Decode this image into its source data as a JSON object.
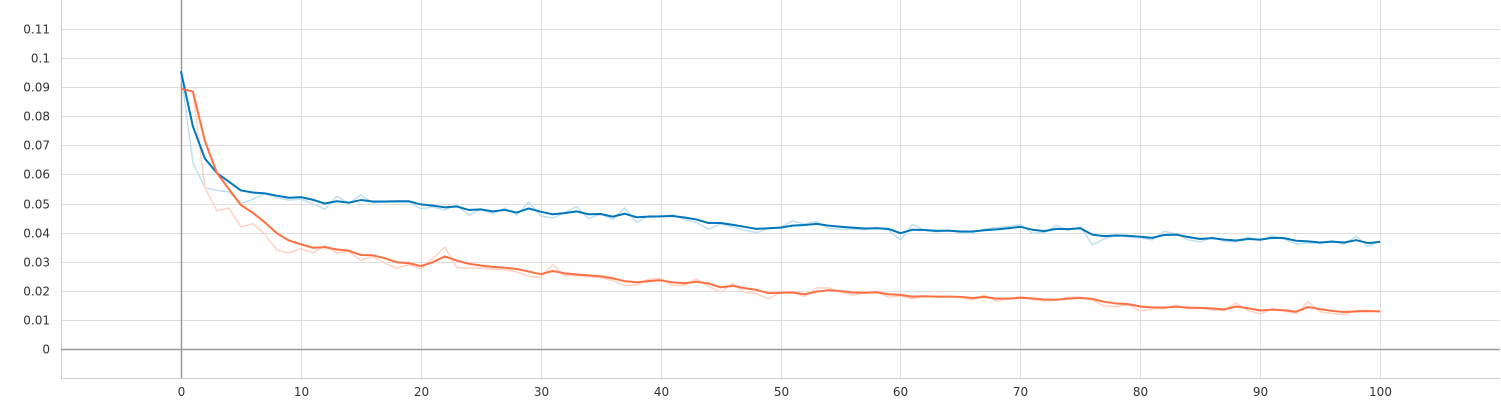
{
  "chart_data": {
    "type": "line",
    "title": "",
    "xlabel": "",
    "ylabel": "",
    "xlim": [
      -10,
      110
    ],
    "ylim": [
      -0.01,
      0.12
    ],
    "x_ticks": [
      0,
      10,
      20,
      30,
      40,
      50,
      60,
      70,
      80,
      90,
      100
    ],
    "x_tick_labels": [
      "0",
      "10",
      "20",
      "30",
      "40",
      "50",
      "60",
      "70",
      "80",
      "90",
      "100"
    ],
    "y_ticks": [
      0,
      0.01,
      0.02,
      0.03,
      0.04,
      0.05,
      0.06,
      0.07,
      0.08,
      0.09,
      0.1,
      0.11
    ],
    "y_tick_labels": [
      "0",
      "0.01",
      "0.02",
      "0.03",
      "0.04",
      "0.05",
      "0.06",
      "0.07",
      "0.08",
      "0.09",
      "0.1",
      "0.11"
    ],
    "grid": true,
    "legend": "none",
    "x": [
      0,
      1,
      2,
      3,
      4,
      5,
      6,
      7,
      8,
      9,
      10,
      11,
      12,
      13,
      14,
      15,
      16,
      17,
      18,
      19,
      20,
      21,
      22,
      23,
      24,
      25,
      26,
      27,
      28,
      29,
      30,
      31,
      32,
      33,
      34,
      35,
      36,
      37,
      38,
      39,
      40,
      41,
      42,
      43,
      44,
      45,
      46,
      47,
      48,
      49,
      50,
      51,
      52,
      53,
      54,
      55,
      56,
      57,
      58,
      59,
      60,
      61,
      62,
      63,
      64,
      65,
      66,
      67,
      68,
      69,
      70,
      71,
      72,
      73,
      74,
      75,
      76,
      77,
      78,
      79,
      80,
      81,
      82,
      83,
      84,
      85,
      86,
      87,
      88,
      89,
      90,
      91,
      92,
      93,
      94,
      95,
      96,
      97,
      98,
      99,
      100
    ],
    "series": [
      {
        "color": "#0077bb",
        "raw_color": "#bfe0ef",
        "smoothed": [
          0.0955,
          0.0765,
          0.0655,
          0.0605,
          0.0575,
          0.0545,
          0.0538,
          0.0535,
          0.0527,
          0.052,
          0.0522,
          0.0513,
          0.05,
          0.0508,
          0.0503,
          0.0512,
          0.0507,
          0.0507,
          0.0508,
          0.0508,
          0.0497,
          0.0493,
          0.0487,
          0.049,
          0.0478,
          0.048,
          0.0473,
          0.0478,
          0.0469,
          0.0483,
          0.0472,
          0.0463,
          0.0467,
          0.0473,
          0.0463,
          0.0464,
          0.0455,
          0.0465,
          0.0453,
          0.0455,
          0.0456,
          0.0457,
          0.0452,
          0.0445,
          0.0433,
          0.0433,
          0.0427,
          0.042,
          0.0413,
          0.0415,
          0.0417,
          0.0424,
          0.0426,
          0.043,
          0.0424,
          0.042,
          0.0417,
          0.0414,
          0.0415,
          0.0413,
          0.0398,
          0.041,
          0.0409,
          0.0406,
          0.0407,
          0.0404,
          0.0404,
          0.0408,
          0.0411,
          0.0415,
          0.042,
          0.041,
          0.0405,
          0.0413,
          0.0412,
          0.0415,
          0.0393,
          0.0388,
          0.039,
          0.0389,
          0.0386,
          0.0382,
          0.0392,
          0.0393,
          0.0385,
          0.0378,
          0.0381,
          0.0376,
          0.0373,
          0.0378,
          0.0376,
          0.0382,
          0.0381,
          0.0372,
          0.037,
          0.0366,
          0.0369,
          0.0366,
          0.0374,
          0.0364,
          0.0368
        ],
        "raw": [
          0.0955,
          0.064,
          0.0555,
          0.0545,
          0.054,
          0.05,
          0.0515,
          0.0535,
          0.052,
          0.0512,
          0.0515,
          0.05,
          0.048,
          0.0525,
          0.05,
          0.053,
          0.0502,
          0.0505,
          0.0505,
          0.0505,
          0.0482,
          0.0488,
          0.0478,
          0.0495,
          0.046,
          0.048,
          0.0465,
          0.0485,
          0.046,
          0.0505,
          0.0458,
          0.045,
          0.0468,
          0.049,
          0.0448,
          0.0465,
          0.0445,
          0.0485,
          0.0435,
          0.0458,
          0.0455,
          0.0462,
          0.0445,
          0.0435,
          0.0412,
          0.043,
          0.042,
          0.0408,
          0.04,
          0.0415,
          0.0418,
          0.044,
          0.043,
          0.0438,
          0.0415,
          0.0412,
          0.0412,
          0.041,
          0.0418,
          0.0408,
          0.0375,
          0.0428,
          0.0408,
          0.0402,
          0.0408,
          0.04,
          0.04,
          0.0412,
          0.0418,
          0.042,
          0.0428,
          0.0398,
          0.04,
          0.0425,
          0.0408,
          0.042,
          0.0358,
          0.0378,
          0.0392,
          0.0385,
          0.0382,
          0.0375,
          0.0405,
          0.0395,
          0.0375,
          0.0368,
          0.0385,
          0.037,
          0.0368,
          0.0385,
          0.0372,
          0.039,
          0.0378,
          0.036,
          0.0365,
          0.0362,
          0.0372,
          0.036,
          0.0388,
          0.0352,
          0.0372
        ]
      },
      {
        "color": "#ff7043",
        "raw_color": "#ffd2c4",
        "smoothed": [
          0.0895,
          0.0885,
          0.0715,
          0.0605,
          0.055,
          0.0495,
          0.0468,
          0.0435,
          0.0398,
          0.0373,
          0.036,
          0.0348,
          0.035,
          0.0342,
          0.0338,
          0.0323,
          0.0322,
          0.0312,
          0.0298,
          0.0295,
          0.0285,
          0.0298,
          0.0318,
          0.0304,
          0.0293,
          0.0287,
          0.0282,
          0.0279,
          0.0275,
          0.0266,
          0.0257,
          0.0268,
          0.026,
          0.0256,
          0.0253,
          0.025,
          0.0243,
          0.0233,
          0.0229,
          0.0233,
          0.0236,
          0.0229,
          0.0226,
          0.0231,
          0.0225,
          0.0212,
          0.0217,
          0.0209,
          0.0203,
          0.0192,
          0.0193,
          0.0194,
          0.0188,
          0.0197,
          0.0202,
          0.0199,
          0.0194,
          0.0193,
          0.0195,
          0.0188,
          0.0186,
          0.018,
          0.0181,
          0.018,
          0.018,
          0.0179,
          0.0175,
          0.0179,
          0.0173,
          0.0173,
          0.0176,
          0.0174,
          0.017,
          0.0169,
          0.0173,
          0.0175,
          0.0172,
          0.0162,
          0.0156,
          0.0154,
          0.0146,
          0.0143,
          0.0142,
          0.0145,
          0.0142,
          0.0141,
          0.0139,
          0.0136,
          0.0146,
          0.014,
          0.0132,
          0.0135,
          0.0133,
          0.0128,
          0.0144,
          0.0137,
          0.0131,
          0.0127,
          0.0129,
          0.013,
          0.0129
        ],
        "raw": [
          0.0895,
          0.0885,
          0.0555,
          0.0475,
          0.0485,
          0.042,
          0.043,
          0.0395,
          0.034,
          0.033,
          0.0345,
          0.033,
          0.0355,
          0.033,
          0.0335,
          0.0305,
          0.0318,
          0.0295,
          0.0278,
          0.029,
          0.0275,
          0.031,
          0.035,
          0.028,
          0.0278,
          0.0278,
          0.0275,
          0.0272,
          0.0265,
          0.025,
          0.0245,
          0.029,
          0.0252,
          0.0252,
          0.0248,
          0.0245,
          0.0235,
          0.0218,
          0.022,
          0.024,
          0.0242,
          0.0218,
          0.022,
          0.024,
          0.0215,
          0.0195,
          0.0225,
          0.0195,
          0.019,
          0.0172,
          0.0195,
          0.0195,
          0.018,
          0.021,
          0.021,
          0.0195,
          0.0185,
          0.0192,
          0.0198,
          0.0178,
          0.0182,
          0.0172,
          0.0182,
          0.0178,
          0.018,
          0.0178,
          0.0168,
          0.0185,
          0.0165,
          0.0172,
          0.018,
          0.017,
          0.0165,
          0.0168,
          0.0178,
          0.0178,
          0.0168,
          0.0148,
          0.0145,
          0.0152,
          0.013,
          0.0138,
          0.014,
          0.015,
          0.0138,
          0.014,
          0.0135,
          0.0132,
          0.0158,
          0.0132,
          0.012,
          0.0138,
          0.013,
          0.0122,
          0.0162,
          0.0128,
          0.0122,
          0.0118,
          0.0132,
          0.0132,
          0.0128
        ]
      }
    ]
  }
}
